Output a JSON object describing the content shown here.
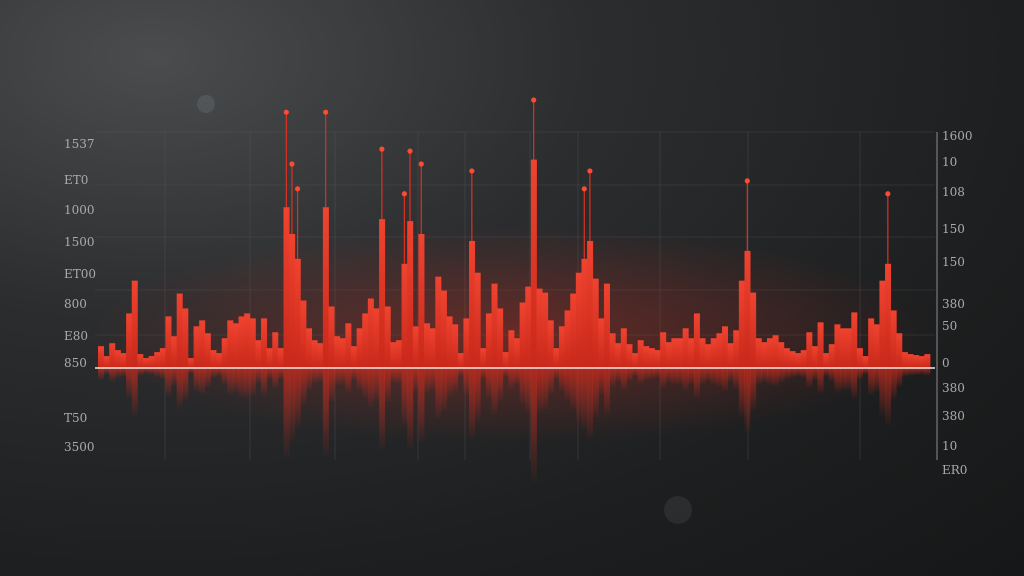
{
  "colors": {
    "bar": "#e0301f",
    "bar_light": "#f0432e",
    "reflection": "#b8281a",
    "baseline": "#f2e8e4",
    "background": "#232526",
    "tick_text": "#a9abad"
  },
  "chart_data": {
    "type": "bar",
    "title": "",
    "xlabel": "",
    "ylabel": "",
    "ylim": [
      0,
      270
    ],
    "grid": true,
    "legend": "none",
    "left_tick_labels": [
      "1537",
      "ET0",
      "1000",
      "1500",
      "ET00",
      "800",
      "E80",
      "850",
      "T50",
      "3500"
    ],
    "right_tick_labels": [
      "1600",
      "10",
      "108",
      "150",
      "150",
      "380",
      "50",
      "0",
      "380",
      "380",
      "10",
      "ER0"
    ],
    "values": [
      22,
      12,
      25,
      18,
      15,
      55,
      88,
      14,
      10,
      12,
      16,
      20,
      52,
      32,
      75,
      60,
      10,
      42,
      48,
      35,
      18,
      15,
      30,
      48,
      45,
      52,
      55,
      50,
      28,
      50,
      20,
      36,
      20,
      162,
      135,
      110,
      68,
      40,
      28,
      25,
      162,
      62,
      32,
      30,
      45,
      22,
      40,
      55,
      70,
      60,
      150,
      62,
      26,
      28,
      105,
      148,
      42,
      135,
      45,
      40,
      92,
      78,
      52,
      44,
      15,
      50,
      128,
      96,
      20,
      55,
      85,
      60,
      16,
      38,
      30,
      66,
      82,
      210,
      80,
      76,
      48,
      20,
      42,
      58,
      75,
      96,
      110,
      128,
      90,
      50,
      85,
      35,
      25,
      40,
      24,
      15,
      28,
      22,
      20,
      18,
      36,
      26,
      30,
      30,
      40,
      30,
      55,
      30,
      24,
      30,
      35,
      42,
      25,
      38,
      88,
      118,
      76,
      30,
      26,
      30,
      33,
      26,
      20,
      17,
      15,
      18,
      36,
      22,
      46,
      15,
      24,
      44,
      40,
      40,
      56,
      20,
      12,
      50,
      44,
      88,
      105,
      58,
      35,
      16,
      14,
      13,
      12,
      14
    ]
  }
}
